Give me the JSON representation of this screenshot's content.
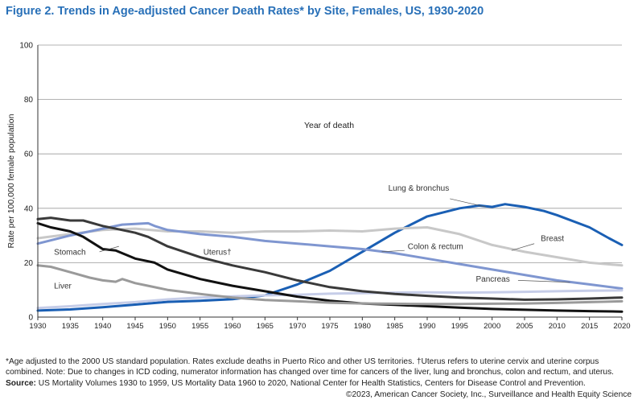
{
  "title": "Figure 2. Trends in Age-adjusted Cancer Death Rates* by Site, Females, US, 1930-2020",
  "footnote": "*Age adjusted to the 2000 US standard population. Rates exclude deaths in Puerto Rico and other US territories. †Uterus refers to uterine cervix and uterine corpus combined. Note: Due to changes in ICD coding, numerator information has changed over time for cancers of the liver, lung and bronchus, colon and rectum, and uterus.",
  "source_label": "Source:",
  "source_text": "US Mortality Volumes 1930 to 1959, US Mortality Data 1960 to 2020, National Center for Health Statistics, Centers for Disease Control and Prevention.",
  "copyright": "©2023, American Cancer Society, Inc., Surveillance and Health Equity Science",
  "chart_data": {
    "type": "line",
    "title": "Trends in Age-adjusted Cancer Death Rates* by Site, Females, US, 1930-2020",
    "xlabel": "Year of death",
    "ylabel": "Rate per 100,000 female population",
    "xlim": [
      1930,
      2020
    ],
    "ylim": [
      0,
      100
    ],
    "xticks": [
      1930,
      1935,
      1940,
      1945,
      1950,
      1955,
      1960,
      1965,
      1970,
      1975,
      1980,
      1985,
      1990,
      1995,
      2000,
      2005,
      2010,
      2015,
      2020
    ],
    "yticks": [
      0,
      20,
      40,
      60,
      80,
      100
    ],
    "grid": "horizontal",
    "series": [
      {
        "name": "Lung & bronchus",
        "color": "#1a5fb4",
        "width": 3,
        "points": [
          [
            1930,
            2.4
          ],
          [
            1935,
            2.8
          ],
          [
            1940,
            3.6
          ],
          [
            1945,
            4.6
          ],
          [
            1950,
            5.6
          ],
          [
            1955,
            6.0
          ],
          [
            1960,
            6.6
          ],
          [
            1965,
            8.0
          ],
          [
            1970,
            12.0
          ],
          [
            1975,
            17.0
          ],
          [
            1980,
            24.0
          ],
          [
            1985,
            31.0
          ],
          [
            1990,
            37.0
          ],
          [
            1995,
            40.0
          ],
          [
            1998,
            41.0
          ],
          [
            2000,
            40.5
          ],
          [
            2002,
            41.5
          ],
          [
            2005,
            40.5
          ],
          [
            2008,
            39.0
          ],
          [
            2010,
            37.5
          ],
          [
            2015,
            33.0
          ],
          [
            2018,
            29.0
          ],
          [
            2020,
            26.5
          ]
        ]
      },
      {
        "name": "Breast",
        "color": "#c8c8c8",
        "width": 3,
        "points": [
          [
            1930,
            29.0
          ],
          [
            1935,
            30.5
          ],
          [
            1940,
            32.0
          ],
          [
            1945,
            32.5
          ],
          [
            1950,
            31.5
          ],
          [
            1955,
            31.5
          ],
          [
            1960,
            31.0
          ],
          [
            1965,
            31.5
          ],
          [
            1970,
            31.5
          ],
          [
            1975,
            31.8
          ],
          [
            1980,
            31.5
          ],
          [
            1985,
            32.5
          ],
          [
            1990,
            33.0
          ],
          [
            1995,
            30.5
          ],
          [
            2000,
            26.5
          ],
          [
            2005,
            24.0
          ],
          [
            2010,
            22.0
          ],
          [
            2015,
            20.0
          ],
          [
            2020,
            19.0
          ]
        ]
      },
      {
        "name": "Colon & rectum",
        "color": "#7f96d0",
        "width": 3,
        "points": [
          [
            1930,
            27.0
          ],
          [
            1935,
            30.0
          ],
          [
            1940,
            32.5
          ],
          [
            1943,
            34.0
          ],
          [
            1947,
            34.5
          ],
          [
            1948,
            33.5
          ],
          [
            1950,
            32.0
          ],
          [
            1955,
            30.5
          ],
          [
            1960,
            29.5
          ],
          [
            1965,
            28.0
          ],
          [
            1970,
            27.0
          ],
          [
            1975,
            26.0
          ],
          [
            1980,
            25.0
          ],
          [
            1985,
            23.5
          ],
          [
            1990,
            21.5
          ],
          [
            1995,
            19.5
          ],
          [
            2000,
            17.5
          ],
          [
            2005,
            15.5
          ],
          [
            2010,
            13.5
          ],
          [
            2015,
            12.0
          ],
          [
            2020,
            10.5
          ]
        ]
      },
      {
        "name": "Pancreas",
        "color": "#c6cde8",
        "width": 3,
        "points": [
          [
            1930,
            3.3
          ],
          [
            1935,
            4.0
          ],
          [
            1940,
            4.8
          ],
          [
            1945,
            5.5
          ],
          [
            1950,
            6.5
          ],
          [
            1955,
            7.2
          ],
          [
            1960,
            7.6
          ],
          [
            1965,
            8.0
          ],
          [
            1970,
            8.2
          ],
          [
            1975,
            8.6
          ],
          [
            1980,
            8.8
          ],
          [
            1985,
            9.0
          ],
          [
            1990,
            9.1
          ],
          [
            1995,
            9.0
          ],
          [
            2000,
            9.1
          ],
          [
            2005,
            9.3
          ],
          [
            2010,
            9.5
          ],
          [
            2015,
            9.7
          ],
          [
            2020,
            9.8
          ]
        ]
      },
      {
        "name": "Uterus†",
        "color": "#3a3a3a",
        "width": 3,
        "points": [
          [
            1930,
            36.0
          ],
          [
            1932,
            36.5
          ],
          [
            1935,
            35.5
          ],
          [
            1937,
            35.5
          ],
          [
            1940,
            33.5
          ],
          [
            1943,
            32.0
          ],
          [
            1945,
            31.0
          ],
          [
            1947,
            29.5
          ],
          [
            1950,
            26.0
          ],
          [
            1955,
            22.0
          ],
          [
            1960,
            19.0
          ],
          [
            1965,
            16.5
          ],
          [
            1970,
            13.5
          ],
          [
            1975,
            11.0
          ],
          [
            1980,
            9.5
          ],
          [
            1985,
            8.5
          ],
          [
            1990,
            7.8
          ],
          [
            1995,
            7.2
          ],
          [
            2000,
            6.8
          ],
          [
            2005,
            6.4
          ],
          [
            2010,
            6.5
          ],
          [
            2015,
            6.8
          ],
          [
            2020,
            7.2
          ]
        ]
      },
      {
        "name": "Stomach",
        "color": "#111111",
        "width": 3,
        "points": [
          [
            1930,
            34.5
          ],
          [
            1932,
            33.0
          ],
          [
            1935,
            31.5
          ],
          [
            1937,
            29.5
          ],
          [
            1940,
            25.0
          ],
          [
            1942,
            24.5
          ],
          [
            1945,
            21.5
          ],
          [
            1948,
            20.0
          ],
          [
            1950,
            17.5
          ],
          [
            1955,
            14.0
          ],
          [
            1960,
            11.5
          ],
          [
            1965,
            9.5
          ],
          [
            1970,
            7.5
          ],
          [
            1975,
            6.0
          ],
          [
            1980,
            5.0
          ],
          [
            1985,
            4.5
          ],
          [
            1990,
            4.0
          ],
          [
            1995,
            3.5
          ],
          [
            2000,
            3.0
          ],
          [
            2005,
            2.7
          ],
          [
            2010,
            2.4
          ],
          [
            2015,
            2.2
          ],
          [
            2020,
            2.0
          ]
        ]
      },
      {
        "name": "Liver",
        "color": "#9a9a9a",
        "width": 3,
        "points": [
          [
            1930,
            19.0
          ],
          [
            1932,
            18.5
          ],
          [
            1935,
            16.5
          ],
          [
            1938,
            14.5
          ],
          [
            1940,
            13.5
          ],
          [
            1942,
            13.0
          ],
          [
            1943,
            14.0
          ],
          [
            1945,
            12.5
          ],
          [
            1947,
            11.5
          ],
          [
            1950,
            10.0
          ],
          [
            1955,
            8.5
          ],
          [
            1960,
            7.2
          ],
          [
            1965,
            6.3
          ],
          [
            1970,
            5.8
          ],
          [
            1975,
            5.3
          ],
          [
            1980,
            5.0
          ],
          [
            1985,
            4.9
          ],
          [
            1990,
            4.8
          ],
          [
            1995,
            4.8
          ],
          [
            2000,
            4.9
          ],
          [
            2005,
            5.0
          ],
          [
            2010,
            5.2
          ],
          [
            2015,
            5.5
          ],
          [
            2020,
            5.8
          ]
        ]
      }
    ],
    "annotations": [
      {
        "text": "Lung & bronchus",
        "x": 1984,
        "y": 46.5
      },
      {
        "text": "Breast",
        "x": 2007.5,
        "y": 28.0
      },
      {
        "text": "Colon & rectum",
        "x": 1987,
        "y": 25.0
      },
      {
        "text": "Pancreas",
        "x": 1997.5,
        "y": 13.0
      },
      {
        "text": "Uterus†",
        "x": 1955.5,
        "y": 23.0
      },
      {
        "text": "Stomach",
        "x": 1932.5,
        "y": 23.0
      },
      {
        "text": "Liver",
        "x": 1932.5,
        "y": 10.5
      }
    ]
  }
}
